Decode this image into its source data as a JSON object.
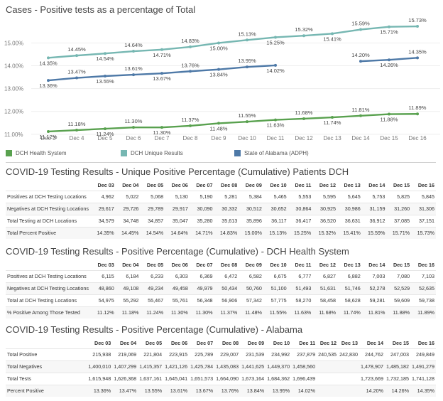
{
  "chart_title": "Cases - Positive tests as a percentage of Total",
  "chart_data": {
    "type": "line",
    "categories": [
      "Dec 3",
      "Dec 4",
      "Dec 5",
      "Dec 6",
      "Dec 7",
      "Dec 8",
      "Dec 9",
      "Dec 10",
      "Dec 11",
      "Dec 12",
      "Dec 13",
      "Dec 14",
      "Dec 15",
      "Dec 16"
    ],
    "y_ticks": [
      "11.00%",
      "12.00%",
      "13.00%",
      "14.00%",
      "15.00%"
    ],
    "ylim": [
      10.9,
      15.95
    ],
    "series": [
      {
        "name": "DCH Health System",
        "color": "#59a14f",
        "values": [
          11.12,
          11.18,
          11.24,
          11.3,
          11.3,
          11.37,
          11.48,
          11.55,
          11.63,
          11.68,
          11.74,
          11.81,
          11.88,
          11.89
        ],
        "labels": [
          "11.12%",
          "11.18%",
          "11.24%",
          "11.30%",
          "11.30%",
          "11.37%",
          "11.48%",
          "11.55%",
          "11.63%",
          "11.68%",
          "11.74%",
          "11.81%",
          "11.88%",
          "11.89%"
        ]
      },
      {
        "name": "DCH Unique Results",
        "color": "#76b7b2",
        "values": [
          14.35,
          14.45,
          14.54,
          14.64,
          14.71,
          14.83,
          15.0,
          15.13,
          15.25,
          15.32,
          15.41,
          15.59,
          15.71,
          15.73
        ],
        "labels": [
          "14.35%",
          "14.45%",
          "14.54%",
          "14.64%",
          "14.71%",
          "14.83%",
          "15.00%",
          "15.13%",
          "15.25%",
          "15.32%",
          "15.41%",
          "15.59%",
          "15.71%",
          "15.73%"
        ]
      },
      {
        "name": "State of Alabama (ADPH)",
        "color": "#4e79a7",
        "values": [
          13.36,
          13.47,
          13.55,
          13.61,
          13.67,
          13.76,
          13.84,
          13.95,
          14.02,
          null,
          null,
          14.2,
          14.26,
          14.35
        ],
        "labels": [
          "13.36%",
          "13.47%",
          "13.55%",
          "13.61%",
          "13.67%",
          "13.76%",
          "13.84%",
          "13.95%",
          "14.02%",
          "",
          "",
          "14.20%",
          "14.26%",
          "14.35%"
        ]
      }
    ]
  },
  "legend": [
    {
      "name": "DCH Health System",
      "color": "#59a14f"
    },
    {
      "name": "DCH Unique Results",
      "color": "#76b7b2"
    },
    {
      "name": "State of Alabama (ADPH)",
      "color": "#4e79a7"
    }
  ],
  "tables": [
    {
      "title": "COVID-19 Testing Results - Unique Positive Percentage (Cumulative) Patients DCH",
      "columns": [
        "Dec 03",
        "Dec 04",
        "Dec 05",
        "Dec 06",
        "Dec 07",
        "Dec 08",
        "Dec 09",
        "Dec 10",
        "Dec 11",
        "Dec 12",
        "Dec 13",
        "Dec 14",
        "Dec 15",
        "Dec 16"
      ],
      "rows": [
        {
          "label": "Positives at DCH Testing Locations",
          "values": [
            "4,962",
            "5,022",
            "5,068",
            "5,130",
            "5,190",
            "5,281",
            "5,384",
            "5,465",
            "5,553",
            "5,595",
            "5,645",
            "5,753",
            "5,825",
            "5,845"
          ]
        },
        {
          "label": "Negatives at DCH Testing Locations",
          "values": [
            "29,617",
            "29,726",
            "29,789",
            "29,917",
            "30,090",
            "30,332",
            "30,512",
            "30,652",
            "30,864",
            "30,925",
            "30,986",
            "31,159",
            "31,260",
            "31,306"
          ]
        },
        {
          "label": "Total Testing at DCH Locations",
          "values": [
            "34,579",
            "34,748",
            "34,857",
            "35,047",
            "35,280",
            "35,613",
            "35,896",
            "36,117",
            "36,417",
            "36,520",
            "36,631",
            "36,912",
            "37,085",
            "37,151"
          ]
        },
        {
          "label": "Total Percent Positive",
          "values": [
            "14.35%",
            "14.45%",
            "14.54%",
            "14.64%",
            "14.71%",
            "14.83%",
            "15.00%",
            "15.13%",
            "15.25%",
            "15.32%",
            "15.41%",
            "15.59%",
            "15.71%",
            "15.73%"
          ]
        }
      ]
    },
    {
      "title": "COVID-19 Testing Results - Positive Percentage (Cumulative) - DCH Health System",
      "columns": [
        "Dec 03",
        "Dec 04",
        "Dec 05",
        "Dec 06",
        "Dec 07",
        "Dec 08",
        "Dec 09",
        "Dec 10",
        "Dec 11",
        "Dec 12",
        "Dec 13",
        "Dec 14",
        "Dec 15",
        "Dec 16"
      ],
      "rows": [
        {
          "label": "Positives at DCH Testing Locations",
          "values": [
            "6,115",
            "6,184",
            "6,233",
            "6,303",
            "6,369",
            "6,472",
            "6,582",
            "6,675",
            "6,777",
            "6,827",
            "6,882",
            "7,003",
            "7,080",
            "7,103"
          ]
        },
        {
          "label": "Negatives at DCH Testing Locations",
          "values": [
            "48,860",
            "49,108",
            "49,234",
            "49,458",
            "49,979",
            "50,434",
            "50,760",
            "51,100",
            "51,493",
            "51,631",
            "51,746",
            "52,278",
            "52,529",
            "52,635"
          ]
        },
        {
          "label": "Total at DCH Testing Locations",
          "values": [
            "54,975",
            "55,292",
            "55,467",
            "55,761",
            "56,348",
            "56,906",
            "57,342",
            "57,775",
            "58,270",
            "58,458",
            "58,628",
            "59,281",
            "59,609",
            "59,738"
          ]
        },
        {
          "label": "% Positive Among Those Tested",
          "values": [
            "11.12%",
            "11.18%",
            "11.24%",
            "11.30%",
            "11.30%",
            "11.37%",
            "11.48%",
            "11.55%",
            "11.63%",
            "11.68%",
            "11.74%",
            "11.81%",
            "11.88%",
            "11.89%"
          ]
        }
      ]
    },
    {
      "title": "COVID-19 Testing Results - Positive Percentage (Cumulative) - Alabama",
      "columns": [
        "Dec 03",
        "Dec 04",
        "Dec 05",
        "Dec 06",
        "Dec 07",
        "Dec 08",
        "Dec 09",
        "Dec 10",
        "Dec 11",
        "Dec 12",
        "Dec 13",
        "Dec 14",
        "Dec 15",
        "Dec 16"
      ],
      "rows": [
        {
          "label": "Total Positive",
          "values": [
            "215,938",
            "219,069",
            "221,804",
            "223,915",
            "225,789",
            "229,007",
            "231,539",
            "234,992",
            "237,879",
            "240,535",
            "242,830",
            "244,762",
            "247,003",
            "249,849"
          ]
        },
        {
          "label": "Total Negatives",
          "values": [
            "1,400,010",
            "1,407,299",
            "1,415,357",
            "1,421,126",
            "1,425,784",
            "1,435,083",
            "1,441,625",
            "1,449,370",
            "1,458,560",
            "",
            "",
            "1,478,907",
            "1,485,182",
            "1,491,279"
          ]
        },
        {
          "label": "Total Tests",
          "values": [
            "1,615,948",
            "1,626,368",
            "1,637,161",
            "1,645,041",
            "1,651,573",
            "1,664,090",
            "1,673,164",
            "1,684,362",
            "1,696,439",
            "",
            "",
            "1,723,669",
            "1,732,185",
            "1,741,128"
          ]
        },
        {
          "label": "Percent Positive",
          "values": [
            "13.36%",
            "13.47%",
            "13.55%",
            "13.61%",
            "13.67%",
            "13.76%",
            "13.84%",
            "13.95%",
            "14.02%",
            "",
            "",
            "14.20%",
            "14.26%",
            "14.35%"
          ]
        }
      ]
    }
  ]
}
